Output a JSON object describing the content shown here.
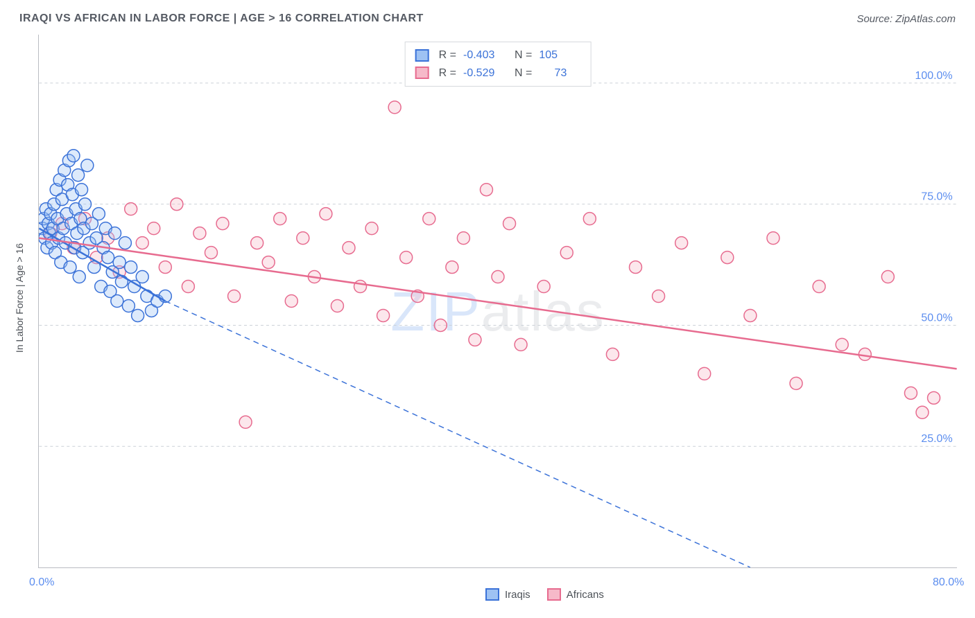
{
  "header": {
    "title": "IRAQI VS AFRICAN IN LABOR FORCE | AGE > 16 CORRELATION CHART",
    "source": "Source: ZipAtlas.com"
  },
  "chart": {
    "type": "scatter",
    "ylabel": "In Labor Force | Age > 16",
    "xlim": [
      0,
      80
    ],
    "ylim": [
      0,
      110
    ],
    "ytick_values": [
      25,
      50,
      75,
      100
    ],
    "ytick_labels": [
      "25.0%",
      "50.0%",
      "75.0%",
      "100.0%"
    ],
    "xtick_values": [
      10,
      20,
      30,
      40,
      50,
      60,
      70,
      80
    ],
    "x_origin_label": "0.0%",
    "x_end_label": "80.0%",
    "grid_color": "#cbd1d7",
    "background_color": "#ffffff",
    "watermark": "ZIPatlas",
    "marker_radius": 9,
    "marker_stroke_width": 1.5,
    "marker_fill_opacity": 0.35,
    "line_width": 2.5,
    "dash_pattern": "8 6",
    "series": {
      "iraqis": {
        "label": "Iraqis",
        "color_stroke": "#3b72d8",
        "color_fill": "#9ec2f3",
        "R": "-0.403",
        "N": "105",
        "trend": {
          "x1": 0,
          "y1": 70,
          "x2": 11,
          "y2": 55,
          "extrap_x2": 62,
          "extrap_y2": 0
        },
        "points": [
          [
            0.3,
            70
          ],
          [
            0.4,
            72
          ],
          [
            0.5,
            68
          ],
          [
            0.6,
            74
          ],
          [
            0.7,
            66
          ],
          [
            0.8,
            71
          ],
          [
            0.9,
            69
          ],
          [
            1.0,
            73
          ],
          [
            1.1,
            67
          ],
          [
            1.2,
            70
          ],
          [
            1.3,
            75
          ],
          [
            1.4,
            65
          ],
          [
            1.5,
            78
          ],
          [
            1.6,
            72
          ],
          [
            1.7,
            68
          ],
          [
            1.8,
            80
          ],
          [
            1.9,
            63
          ],
          [
            2.0,
            76
          ],
          [
            2.1,
            70
          ],
          [
            2.2,
            82
          ],
          [
            2.3,
            67
          ],
          [
            2.4,
            73
          ],
          [
            2.5,
            79
          ],
          [
            2.6,
            84
          ],
          [
            2.7,
            62
          ],
          [
            2.8,
            71
          ],
          [
            2.9,
            77
          ],
          [
            3.0,
            85
          ],
          [
            3.1,
            66
          ],
          [
            3.2,
            74
          ],
          [
            3.3,
            69
          ],
          [
            3.4,
            81
          ],
          [
            3.5,
            60
          ],
          [
            3.6,
            72
          ],
          [
            3.7,
            78
          ],
          [
            3.8,
            65
          ],
          [
            3.9,
            70
          ],
          [
            4.0,
            75
          ],
          [
            4.2,
            83
          ],
          [
            4.4,
            67
          ],
          [
            4.6,
            71
          ],
          [
            4.8,
            62
          ],
          [
            5.0,
            68
          ],
          [
            5.2,
            73
          ],
          [
            5.4,
            58
          ],
          [
            5.6,
            66
          ],
          [
            5.8,
            70
          ],
          [
            6.0,
            64
          ],
          [
            6.2,
            57
          ],
          [
            6.4,
            61
          ],
          [
            6.6,
            69
          ],
          [
            6.8,
            55
          ],
          [
            7.0,
            63
          ],
          [
            7.2,
            59
          ],
          [
            7.5,
            67
          ],
          [
            7.8,
            54
          ],
          [
            8.0,
            62
          ],
          [
            8.3,
            58
          ],
          [
            8.6,
            52
          ],
          [
            9.0,
            60
          ],
          [
            9.4,
            56
          ],
          [
            9.8,
            53
          ],
          [
            10.3,
            55
          ],
          [
            11.0,
            56
          ]
        ]
      },
      "africans": {
        "label": "Africans",
        "color_stroke": "#e76b8f",
        "color_fill": "#f6b9c9",
        "R": "-0.529",
        "N": "73",
        "trend": {
          "x1": 0,
          "y1": 68,
          "x2": 80,
          "y2": 41
        },
        "points": [
          [
            1,
            69
          ],
          [
            2,
            71
          ],
          [
            3,
            66
          ],
          [
            4,
            72
          ],
          [
            5,
            64
          ],
          [
            6,
            68
          ],
          [
            7,
            61
          ],
          [
            8,
            74
          ],
          [
            9,
            67
          ],
          [
            10,
            70
          ],
          [
            11,
            62
          ],
          [
            12,
            75
          ],
          [
            13,
            58
          ],
          [
            14,
            69
          ],
          [
            15,
            65
          ],
          [
            16,
            71
          ],
          [
            17,
            56
          ],
          [
            18,
            30
          ],
          [
            19,
            67
          ],
          [
            20,
            63
          ],
          [
            21,
            72
          ],
          [
            22,
            55
          ],
          [
            23,
            68
          ],
          [
            24,
            60
          ],
          [
            25,
            73
          ],
          [
            26,
            54
          ],
          [
            27,
            66
          ],
          [
            28,
            58
          ],
          [
            29,
            70
          ],
          [
            30,
            52
          ],
          [
            31,
            95
          ],
          [
            32,
            64
          ],
          [
            33,
            56
          ],
          [
            34,
            72
          ],
          [
            35,
            50
          ],
          [
            36,
            62
          ],
          [
            37,
            68
          ],
          [
            38,
            47
          ],
          [
            39,
            78
          ],
          [
            40,
            60
          ],
          [
            41,
            71
          ],
          [
            42,
            46
          ],
          [
            44,
            58
          ],
          [
            46,
            65
          ],
          [
            48,
            72
          ],
          [
            50,
            44
          ],
          [
            52,
            62
          ],
          [
            54,
            56
          ],
          [
            56,
            67
          ],
          [
            58,
            40
          ],
          [
            60,
            64
          ],
          [
            62,
            52
          ],
          [
            64,
            68
          ],
          [
            66,
            38
          ],
          [
            68,
            58
          ],
          [
            70,
            46
          ],
          [
            72,
            44
          ],
          [
            74,
            60
          ],
          [
            76,
            36
          ],
          [
            77,
            32
          ],
          [
            78,
            35
          ]
        ]
      }
    }
  },
  "legend_bottom": {
    "items": [
      {
        "key": "iraqis"
      },
      {
        "key": "africans"
      }
    ]
  }
}
